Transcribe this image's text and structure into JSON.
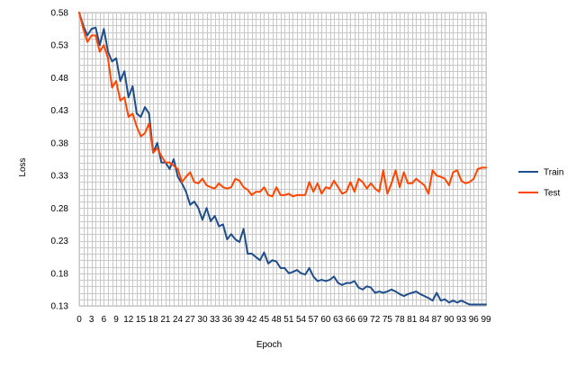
{
  "chart_data": {
    "type": "line",
    "xlabel": "Epoch",
    "ylabel": "Loss",
    "xlim": [
      0,
      99
    ],
    "ylim": [
      0.13,
      0.58
    ],
    "y_ticks": [
      0.58,
      0.53,
      0.48,
      0.43,
      0.38,
      0.33,
      0.28,
      0.23,
      0.18,
      0.13
    ],
    "y_tick_labels": [
      "0.58",
      "0.53",
      "0.48",
      "0.43",
      "0.38",
      "0.33",
      "0.28",
      "0.23",
      "0.18",
      "0.13"
    ],
    "x_tick_step": 3,
    "grid": true,
    "legend_position": "right",
    "x": [
      0,
      1,
      2,
      3,
      4,
      5,
      6,
      7,
      8,
      9,
      10,
      11,
      12,
      13,
      14,
      15,
      16,
      17,
      18,
      19,
      20,
      21,
      22,
      23,
      24,
      25,
      26,
      27,
      28,
      29,
      30,
      31,
      32,
      33,
      34,
      35,
      36,
      37,
      38,
      39,
      40,
      41,
      42,
      43,
      44,
      45,
      46,
      47,
      48,
      49,
      50,
      51,
      52,
      53,
      54,
      55,
      56,
      57,
      58,
      59,
      60,
      61,
      62,
      63,
      64,
      65,
      66,
      67,
      68,
      69,
      70,
      71,
      72,
      73,
      74,
      75,
      76,
      77,
      78,
      79,
      80,
      81,
      82,
      83,
      84,
      85,
      86,
      87,
      88,
      89,
      90,
      91,
      92,
      93,
      94,
      95,
      96,
      97,
      98,
      99
    ],
    "series": [
      {
        "name": "Train",
        "color": "#1f4e8c",
        "values": [
          0.58,
          0.56,
          0.545,
          0.555,
          0.557,
          0.53,
          0.555,
          0.52,
          0.505,
          0.51,
          0.475,
          0.49,
          0.45,
          0.467,
          0.425,
          0.42,
          0.435,
          0.425,
          0.365,
          0.38,
          0.35,
          0.35,
          0.34,
          0.355,
          0.328,
          0.318,
          0.305,
          0.285,
          0.29,
          0.28,
          0.262,
          0.28,
          0.26,
          0.268,
          0.252,
          0.255,
          0.232,
          0.24,
          0.232,
          0.228,
          0.248,
          0.21,
          0.21,
          0.205,
          0.2,
          0.212,
          0.195,
          0.2,
          0.198,
          0.188,
          0.188,
          0.18,
          0.182,
          0.185,
          0.18,
          0.178,
          0.188,
          0.175,
          0.168,
          0.17,
          0.168,
          0.17,
          0.175,
          0.165,
          0.162,
          0.165,
          0.165,
          0.168,
          0.158,
          0.155,
          0.16,
          0.158,
          0.15,
          0.152,
          0.15,
          0.152,
          0.155,
          0.152,
          0.148,
          0.145,
          0.148,
          0.15,
          0.152,
          0.148,
          0.145,
          0.142,
          0.138,
          0.15,
          0.138,
          0.14,
          0.135,
          0.138,
          0.135,
          0.138,
          0.135,
          0.132,
          0.132,
          0.132,
          0.132,
          0.132
        ]
      },
      {
        "name": "Test",
        "color": "#ff4500",
        "values": [
          0.58,
          0.555,
          0.535,
          0.545,
          0.545,
          0.52,
          0.53,
          0.51,
          0.465,
          0.475,
          0.445,
          0.45,
          0.42,
          0.425,
          0.405,
          0.39,
          0.395,
          0.41,
          0.365,
          0.372,
          0.36,
          0.35,
          0.35,
          0.345,
          0.34,
          0.32,
          0.328,
          0.335,
          0.32,
          0.318,
          0.325,
          0.315,
          0.312,
          0.31,
          0.318,
          0.312,
          0.31,
          0.312,
          0.325,
          0.322,
          0.312,
          0.308,
          0.3,
          0.305,
          0.305,
          0.312,
          0.3,
          0.298,
          0.312,
          0.3,
          0.3,
          0.302,
          0.298,
          0.3,
          0.3,
          0.3,
          0.32,
          0.305,
          0.318,
          0.302,
          0.312,
          0.31,
          0.322,
          0.312,
          0.302,
          0.305,
          0.32,
          0.305,
          0.325,
          0.32,
          0.31,
          0.318,
          0.31,
          0.305,
          0.338,
          0.302,
          0.318,
          0.338,
          0.312,
          0.335,
          0.318,
          0.318,
          0.325,
          0.32,
          0.315,
          0.302,
          0.338,
          0.33,
          0.328,
          0.325,
          0.315,
          0.335,
          0.338,
          0.322,
          0.318,
          0.32,
          0.325,
          0.34,
          0.342,
          0.342
        ]
      }
    ]
  }
}
